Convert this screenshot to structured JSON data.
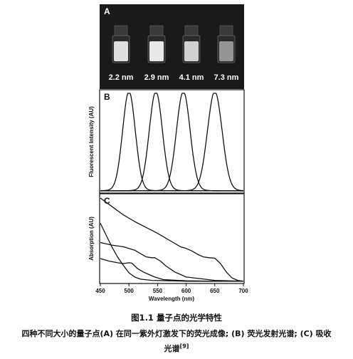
{
  "panel_a": {
    "letter": "A",
    "sizes": [
      "2.2 nm",
      "2.9 nm",
      "4.1 nm",
      "7.3 nm"
    ],
    "vial_glow_colors": [
      "#e9e9e9",
      "#f2f2f2",
      "#dadada",
      "#9a9a9a"
    ]
  },
  "chart_data": [
    {
      "type": "line",
      "panel": "B",
      "ylabel": "Fluorescent Intensity (AU)",
      "xlabel": "",
      "xlim": [
        450,
        700
      ],
      "series": [
        {
          "peak_nm": 500,
          "fwhm_nm": 26,
          "peak_intensity": 1.0
        },
        {
          "peak_nm": 547,
          "fwhm_nm": 27,
          "peak_intensity": 1.0
        },
        {
          "peak_nm": 595,
          "fwhm_nm": 28,
          "peak_intensity": 1.0
        },
        {
          "peak_nm": 650,
          "fwhm_nm": 30,
          "peak_intensity": 1.0
        }
      ]
    },
    {
      "type": "line",
      "panel": "C",
      "ylabel": "Absorption (AU)",
      "xlabel": "Wavelength (nm)",
      "xlim": [
        450,
        700
      ],
      "xticks": [
        450,
        500,
        550,
        600,
        650,
        700
      ],
      "series": [
        {
          "x": [
            450,
            460,
            470,
            480,
            490,
            500,
            510,
            520,
            540,
            570,
            600,
            640,
            700
          ],
          "y": [
            0.7,
            0.56,
            0.42,
            0.3,
            0.2,
            0.11,
            0.06,
            0.035,
            0.02,
            0.015,
            0.01,
            0.01,
            0.01
          ]
        },
        {
          "x": [
            450,
            465,
            480,
            490,
            500,
            505,
            515,
            525,
            535,
            545,
            560,
            600,
            650,
            700
          ],
          "y": [
            0.28,
            0.25,
            0.23,
            0.22,
            0.23,
            0.225,
            0.16,
            0.12,
            0.09,
            0.06,
            0.03,
            0.015,
            0.01,
            0.01
          ]
        },
        {
          "x": [
            450,
            470,
            490,
            510,
            520,
            530,
            540,
            545,
            555,
            565,
            580,
            600,
            650,
            700
          ],
          "y": [
            0.47,
            0.44,
            0.42,
            0.38,
            0.34,
            0.3,
            0.29,
            0.29,
            0.25,
            0.19,
            0.12,
            0.06,
            0.02,
            0.01
          ]
        },
        {
          "x": [
            450,
            470,
            490,
            510,
            530,
            550,
            570,
            590,
            600,
            610,
            620,
            630,
            640,
            650,
            660,
            670,
            680,
            690,
            700
          ],
          "y": [
            1.0,
            0.9,
            0.8,
            0.72,
            0.65,
            0.58,
            0.5,
            0.42,
            0.4,
            0.37,
            0.33,
            0.3,
            0.29,
            0.285,
            0.22,
            0.12,
            0.05,
            0.02,
            0.01
          ]
        }
      ]
    }
  ],
  "caption": {
    "title": "图1.1  量子点的光学特性",
    "line1": "四种不同大小的量子点(A) 在同一紫外灯激发下的荧光成像; (B) 荧光发射光谱; (C) 吸收",
    "line2": "光谱",
    "ref": "[9]"
  }
}
